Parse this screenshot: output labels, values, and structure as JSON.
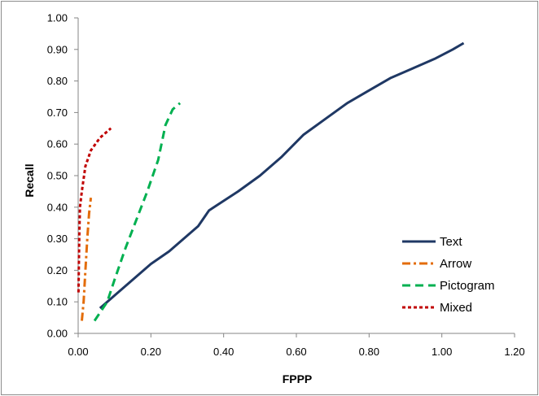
{
  "chart_data": {
    "type": "line",
    "title": "",
    "xlabel": "FPPP",
    "ylabel": "Recall",
    "xlim": [
      0,
      1.2
    ],
    "ylim": [
      0,
      1.0
    ],
    "xticks": [
      "0.00",
      "0.20",
      "0.40",
      "0.60",
      "0.80",
      "1.00",
      "1.20"
    ],
    "yticks": [
      "0.00",
      "0.10",
      "0.20",
      "0.30",
      "0.40",
      "0.50",
      "0.60",
      "0.70",
      "0.80",
      "0.90",
      "1.00"
    ],
    "grid": false,
    "legend_position": "bottom-right",
    "series": [
      {
        "name": "Text",
        "color": "#1f3864",
        "dash": "solid",
        "points": [
          [
            0.06,
            0.08
          ],
          [
            0.1,
            0.12
          ],
          [
            0.15,
            0.17
          ],
          [
            0.2,
            0.22
          ],
          [
            0.25,
            0.26
          ],
          [
            0.3,
            0.31
          ],
          [
            0.33,
            0.34
          ],
          [
            0.36,
            0.39
          ],
          [
            0.4,
            0.42
          ],
          [
            0.44,
            0.45
          ],
          [
            0.5,
            0.5
          ],
          [
            0.56,
            0.56
          ],
          [
            0.62,
            0.63
          ],
          [
            0.68,
            0.68
          ],
          [
            0.74,
            0.73
          ],
          [
            0.8,
            0.77
          ],
          [
            0.86,
            0.81
          ],
          [
            0.92,
            0.84
          ],
          [
            0.98,
            0.87
          ],
          [
            1.03,
            0.9
          ],
          [
            1.06,
            0.92
          ]
        ]
      },
      {
        "name": "Arrow",
        "color": "#e36c0a",
        "dash": "dashdot",
        "points": [
          [
            0.01,
            0.04
          ],
          [
            0.015,
            0.1
          ],
          [
            0.02,
            0.2
          ],
          [
            0.025,
            0.3
          ],
          [
            0.03,
            0.38
          ],
          [
            0.035,
            0.43
          ]
        ]
      },
      {
        "name": "Pictogram",
        "color": "#00b050",
        "dash": "dashed",
        "points": [
          [
            0.045,
            0.04
          ],
          [
            0.08,
            0.1
          ],
          [
            0.1,
            0.17
          ],
          [
            0.13,
            0.27
          ],
          [
            0.16,
            0.36
          ],
          [
            0.19,
            0.45
          ],
          [
            0.22,
            0.55
          ],
          [
            0.24,
            0.66
          ],
          [
            0.26,
            0.71
          ],
          [
            0.28,
            0.73
          ]
        ]
      },
      {
        "name": "Mixed",
        "color": "#c00000",
        "dash": "dotted",
        "points": [
          [
            0.001,
            0.13
          ],
          [
            0.003,
            0.3
          ],
          [
            0.005,
            0.4
          ],
          [
            0.01,
            0.45
          ],
          [
            0.02,
            0.53
          ],
          [
            0.035,
            0.58
          ],
          [
            0.06,
            0.62
          ],
          [
            0.08,
            0.64
          ],
          [
            0.09,
            0.65
          ]
        ]
      }
    ]
  }
}
